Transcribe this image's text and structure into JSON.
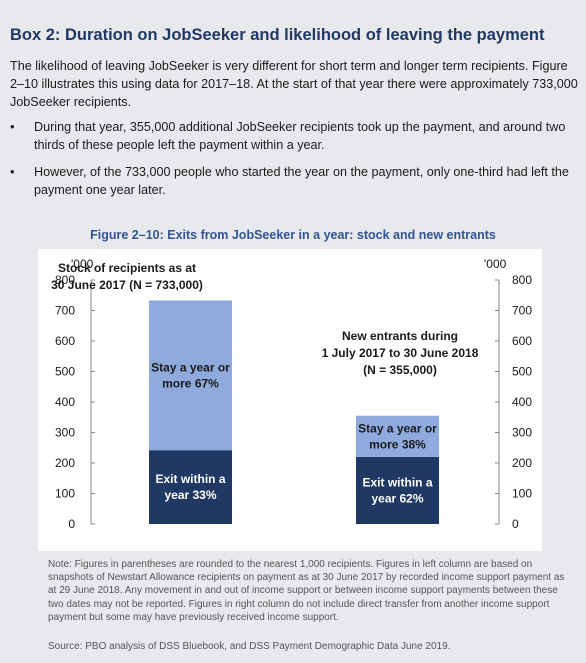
{
  "box": {
    "title": "Box 2: Duration on JobSeeker and likelihood of leaving the payment",
    "intro": "The likelihood of leaving JobSeeker is very different for short term and longer term recipients. Figure 2–10 illustrates this using data for 2017–18. At the start of that year there were approximately 733,000 JobSeeker recipients.",
    "bullets": [
      "During that year, 355,000 additional JobSeeker recipients took up the payment, and around two thirds of these people left the payment within a year.",
      "However, of the 733,000 people who started the year on the payment, only one-third had left the payment one year later."
    ],
    "bullet_symbol": "•"
  },
  "figure": {
    "title": "Figure 2–10: Exits from JobSeeker in a year: stock and new entrants",
    "notes": "Note: Figures in parentheses are rounded to the nearest 1,000 recipients. Figures in left column are based on snapshots of Newstart Allowance recipients on payment as at 30 June 2017 by recorded income support payment as at 29 June 2018. Any movement in and out of income support or between income support payments between these two dates may not be reported. Figures in right column do not include direct transfer from another income support payment but some may have previously received income support.",
    "source": "Source: PBO analysis of DSS Bluebook, and DSS Payment Demographic Data June 2019."
  },
  "chart_data": {
    "type": "bar",
    "stacked": true,
    "categories": [
      "Stock of recipients as at 30 June 2017 (N = 733,000)",
      "New entrants during 1 July 2017 to 30 June 2018 (N = 355,000)"
    ],
    "category_labels": [
      [
        "Stock of recipients as at",
        "30 June 2017 (N = 733,000)"
      ],
      [
        "New entrants during",
        "1 July 2017  to  30 June 2018",
        "(N = 355,000)"
      ]
    ],
    "series": [
      {
        "values": [
          242,
          220
        ],
        "segment_labels": [
          [
            "Exit within a",
            "year 33%"
          ],
          [
            "Exit within a",
            "year 62%"
          ]
        ],
        "color": "#203864"
      },
      {
        "values": [
          491,
          135
        ],
        "segment_labels": [
          [
            "Stay a year or",
            "more 67%"
          ],
          [
            "Stay a year or",
            "more 38%"
          ]
        ],
        "color": "#8faadc"
      }
    ],
    "ylabel_left": "'000",
    "ylabel_right": "'000",
    "ylim": [
      0,
      800
    ],
    "yticks": [
      0,
      100,
      200,
      300,
      400,
      500,
      600,
      700,
      800
    ],
    "grid": false,
    "legend": "none"
  }
}
